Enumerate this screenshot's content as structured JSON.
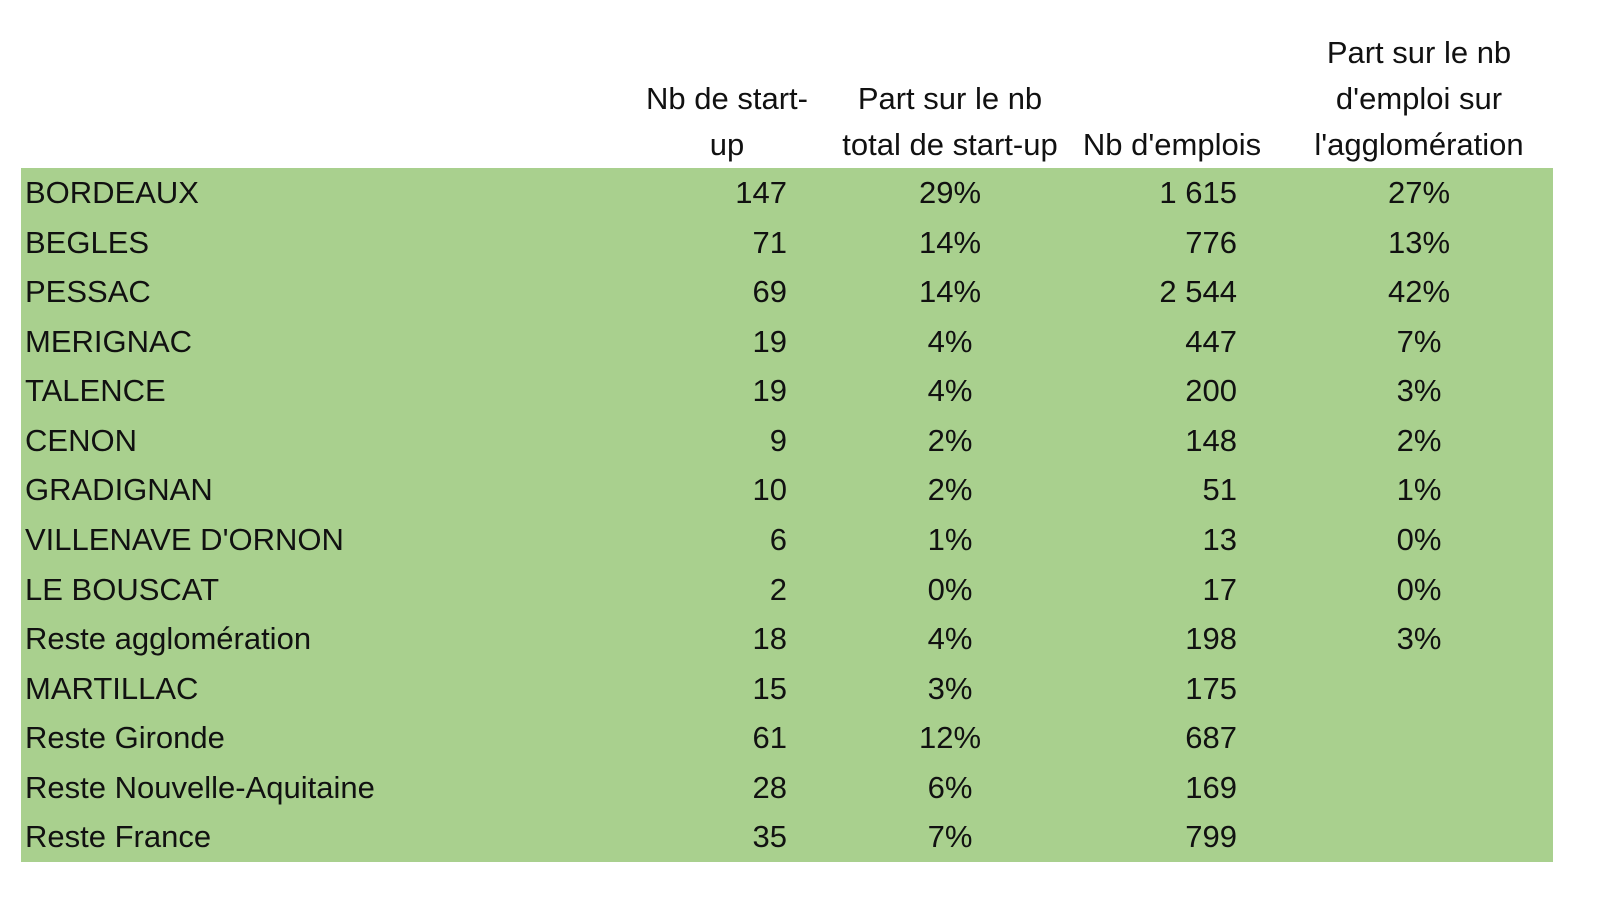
{
  "table": {
    "headers": [
      "Nb de start-up",
      "Part sur le nb total de start-up",
      "Nb d'emplois",
      "Part sur le nb d'emploi sur l'agglomération"
    ],
    "rows": [
      [
        "BORDEAUX",
        "147",
        "29%",
        "1 615",
        "27%"
      ],
      [
        "BEGLES",
        "71",
        "14%",
        "776",
        "13%"
      ],
      [
        "PESSAC",
        "69",
        "14%",
        "2 544",
        "42%"
      ],
      [
        "MERIGNAC",
        "19",
        "4%",
        "447",
        "7%"
      ],
      [
        "TALENCE",
        "19",
        "4%",
        "200",
        "3%"
      ],
      [
        "CENON",
        "9",
        "2%",
        "148",
        "2%"
      ],
      [
        "GRADIGNAN",
        "10",
        "2%",
        "51",
        "1%"
      ],
      [
        "VILLENAVE D'ORNON",
        "6",
        "1%",
        "13",
        "0%"
      ],
      [
        "LE BOUSCAT",
        "2",
        "0%",
        "17",
        "0%"
      ],
      [
        "Reste agglomération",
        "18",
        "4%",
        "198",
        "3%"
      ],
      [
        "MARTILLAC",
        "15",
        "3%",
        "175"
      ],
      [
        "Reste Gironde",
        "61",
        "12%",
        "687"
      ],
      [
        "Reste Nouvelle-Aquitaine",
        "28",
        "6%",
        "169"
      ],
      [
        "Reste France",
        "35",
        "7%",
        "799"
      ]
    ]
  }
}
